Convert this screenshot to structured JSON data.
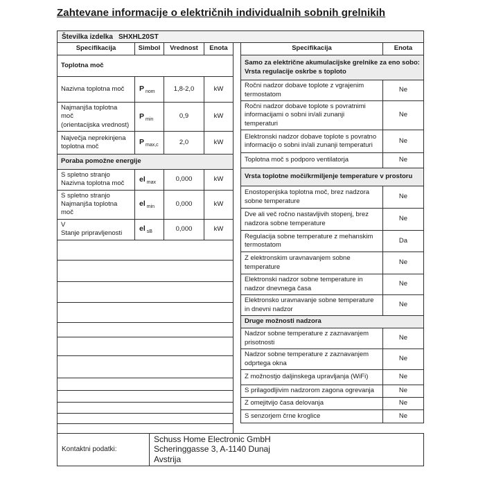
{
  "page": {
    "title": "Zahtevane informacije o električnih individualnih sobnih grelnikih"
  },
  "product": {
    "label": "Številka izdelka",
    "value": "SHXHL20ST"
  },
  "left_table": {
    "headers": [
      "Specifikacija",
      "Simbol",
      "Vrednost",
      "Enota"
    ],
    "sections": [
      {
        "title": "Toplotna moč",
        "shaded": false,
        "rows": [
          {
            "spec_lines": [
              "Nazivna toplotna moč"
            ],
            "sym": "P",
            "sub": "nom",
            "value": "1,8-2,0",
            "unit": "kW"
          },
          {
            "spec_lines": [
              "Najmanjša toplotna moč",
              "(orientacijska vrednost)"
            ],
            "sym": "P",
            "sub": "min",
            "value": "0,9",
            "unit": "kW"
          },
          {
            "spec_lines": [
              "Največja neprekinjena",
              "toplotna moč"
            ],
            "sym": "P",
            "sub": "max,c",
            "value": "2,0",
            "unit": "kW"
          }
        ]
      },
      {
        "title": "Poraba pomožne energije",
        "shaded": true,
        "rows": [
          {
            "spec_lines": [
              "S spletno stranjo",
              "Nazivna toplotna moč"
            ],
            "sym": "el",
            "sub": "max",
            "value": "0,000",
            "unit": "kW"
          },
          {
            "spec_lines": [
              "S spletno stranjo",
              "Najmanjša toplotna moč"
            ],
            "sym": "el",
            "sub": "min",
            "value": "0,000",
            "unit": "kW"
          },
          {
            "spec_lines": [
              "V",
              "Stanje pripravljenosti"
            ],
            "sym": "el",
            "sub": "sB",
            "value": "0,000",
            "unit": "kW"
          }
        ]
      }
    ],
    "empty_row_count": 12
  },
  "right_table": {
    "headers": [
      "Specifikacija",
      "Enota"
    ],
    "sections": [
      {
        "title_lines": [
          "Samo za električne akumulacijske grelnike za eno sobo:",
          "Vrsta regulacije oskrbe s toploto"
        ],
        "rows": [
          {
            "spec": "Ročni nadzor dobave toplote z vgrajenim termostatom",
            "val": "Ne"
          },
          {
            "spec": "Ročni nadzor dobave toplote s povratnimi informacijami o sobni in/ali zunanji temperaturi",
            "val": "Ne"
          },
          {
            "spec": "Elektronski nadzor dobave toplote s povratno informacijo o sobni in/ali zunanji temperaturi",
            "val": "Ne"
          },
          {
            "spec": "Toplotna moč s podporo ventilatorja",
            "val": "Ne"
          }
        ]
      },
      {
        "title_lines": [
          "Vrsta toplotne moči/krmiljenje temperature v prostoru"
        ],
        "rows": [
          {
            "spec": "Enostopenjska toplotna moč, brez nadzora sobne temperature",
            "val": "Ne"
          },
          {
            "spec": "Dve ali več ročno nastavljivih stopenj, brez nadzora sobne temperature",
            "val": "Ne"
          },
          {
            "spec": "Regulacija sobne temperature z mehanskim termostatom",
            "val": "Da"
          },
          {
            "spec": "Z elektronskim uravnavanjem sobne temperature",
            "val": "Ne"
          },
          {
            "spec": "Elektronski nadzor sobne temperature in nadzor dnevnega časa",
            "val": "Ne"
          },
          {
            "spec": "Elektronsko uravnavanje sobne temperature in dnevni nadzor",
            "val": "Ne"
          }
        ]
      },
      {
        "title_lines": [
          "Druge možnosti nadzora"
        ],
        "rows": [
          {
            "spec": "Nadzor sobne temperature z zaznavanjem prisotnosti",
            "val": "Ne"
          },
          {
            "spec": "Nadzor sobne temperature z zaznavanjem odprtega okna",
            "val": "Ne"
          },
          {
            "spec": "Z možnostjo daljinskega upravljanja (WiFi)",
            "val": "Ne"
          },
          {
            "spec": "S prilagodljivim nadzorom zagona ogrevanja",
            "val": "Ne"
          },
          {
            "spec": "Z omejitvijo časa delovanja",
            "val": "Ne"
          },
          {
            "spec": "S senzorjem črne kroglice",
            "val": "Ne"
          }
        ]
      }
    ]
  },
  "contact": {
    "label": "Kontaktni podatki:",
    "lines": [
      "Schuss Home Electronic GmbH",
      "Scheringgasse 3, A-1140 Dunaj",
      "Avstrija"
    ]
  }
}
